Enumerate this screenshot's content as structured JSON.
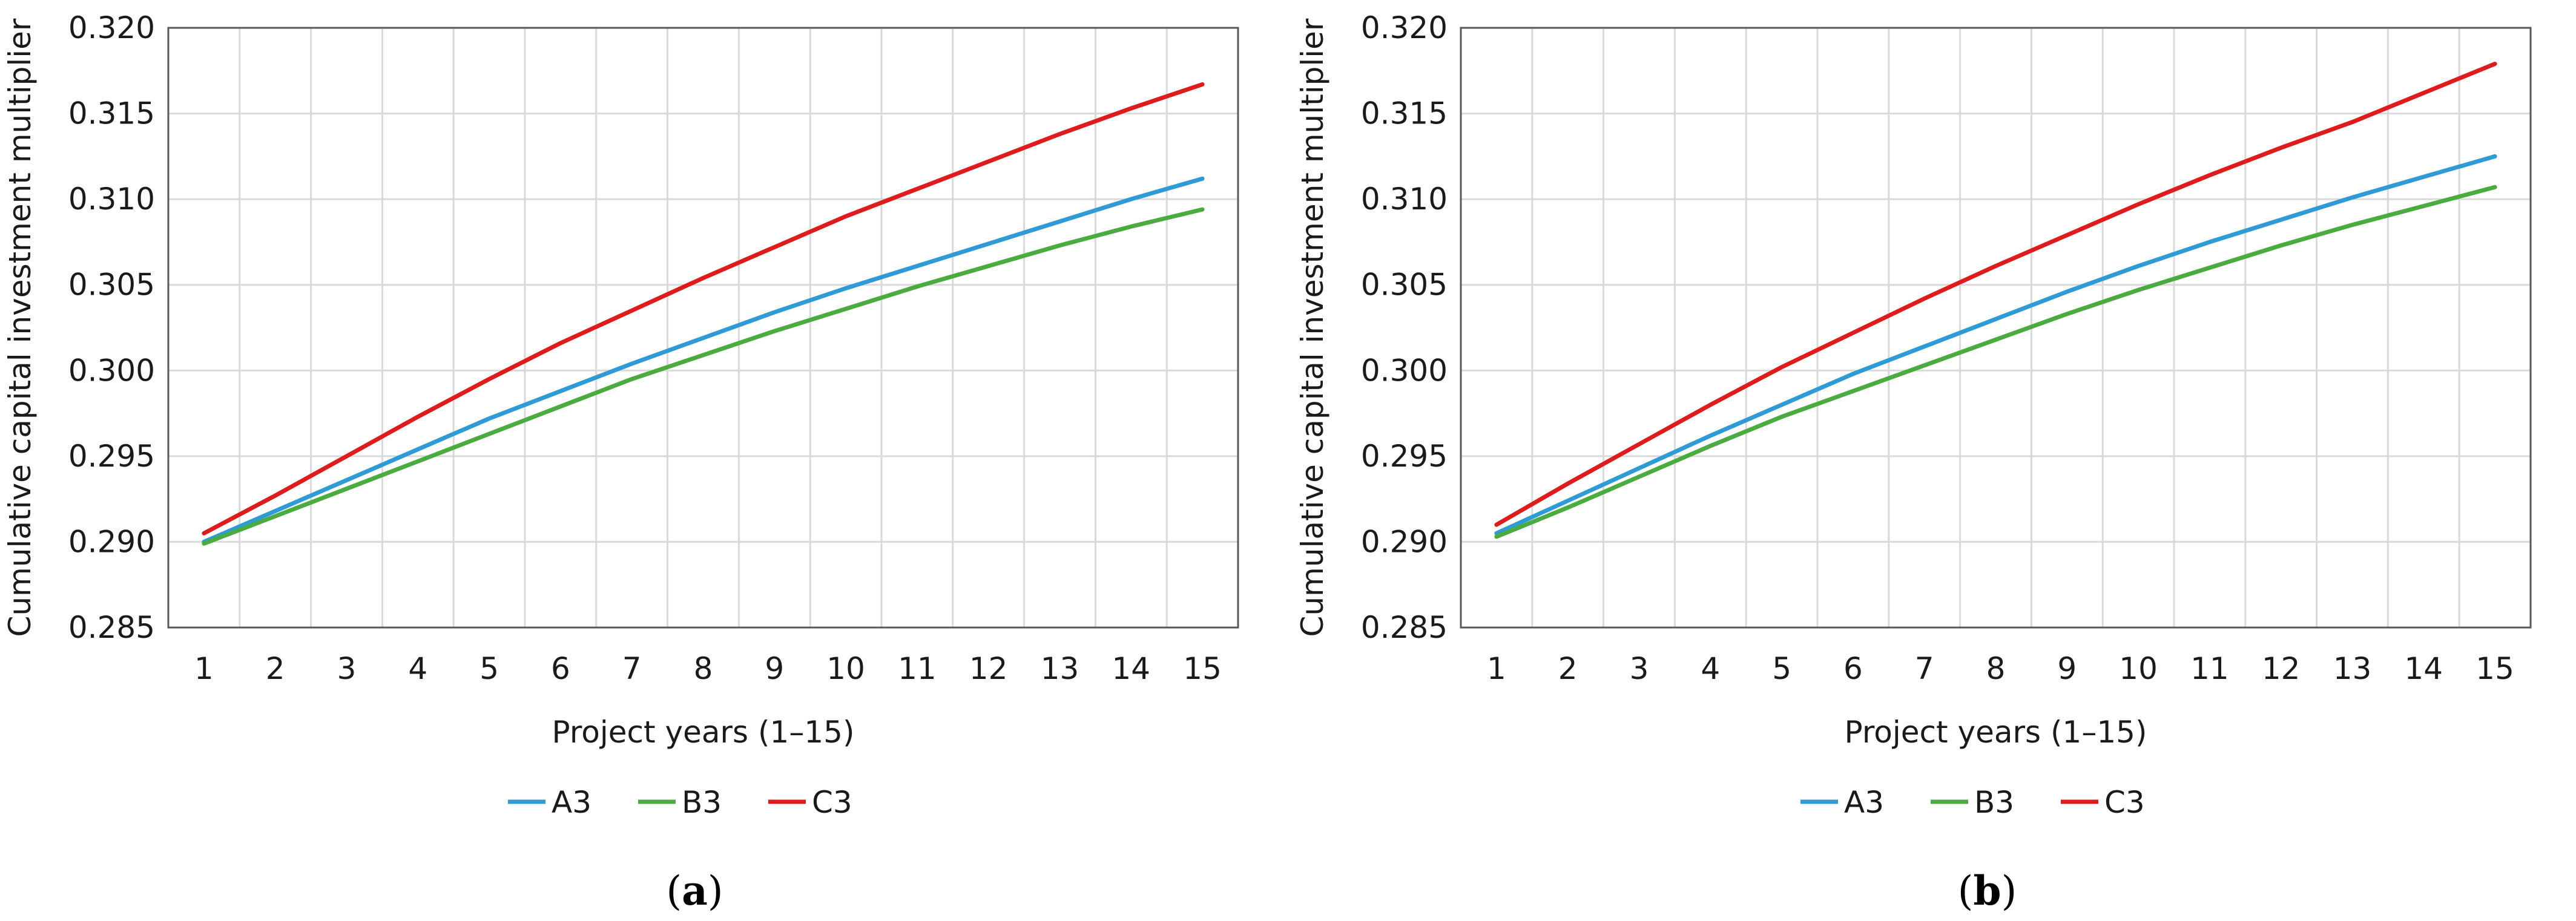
{
  "chart_data": [
    {
      "type": "line",
      "caption": "a",
      "xlabel": "Project years (1–15)",
      "ylabel": "Cumulative capital investment multiplier",
      "ylim": [
        0.285,
        0.32
      ],
      "yticks": [
        "0.285",
        "0.290",
        "0.295",
        "0.300",
        "0.305",
        "0.310",
        "0.315",
        "0.320"
      ],
      "x": [
        1,
        2,
        3,
        4,
        5,
        6,
        7,
        8,
        9,
        10,
        11,
        12,
        13,
        14,
        15
      ],
      "grid": true,
      "legend_position": "bottom",
      "series": [
        {
          "name": "A3",
          "color": "#2e9bd6",
          "values": [
            0.29,
            0.2918,
            0.2936,
            0.2954,
            0.2972,
            0.2988,
            0.3004,
            0.3019,
            0.3034,
            0.3048,
            0.3061,
            0.3074,
            0.3087,
            0.31,
            0.3112
          ]
        },
        {
          "name": "B3",
          "color": "#4aab3e",
          "values": [
            0.2899,
            0.2915,
            0.2931,
            0.2947,
            0.2963,
            0.2979,
            0.2995,
            0.3009,
            0.3023,
            0.3036,
            0.3049,
            0.3061,
            0.3073,
            0.3084,
            0.3094
          ]
        },
        {
          "name": "C3",
          "color": "#e01b1b",
          "values": [
            0.2905,
            0.2927,
            0.295,
            0.2973,
            0.2995,
            0.3016,
            0.3035,
            0.3054,
            0.3072,
            0.309,
            0.3106,
            0.3122,
            0.3138,
            0.3153,
            0.3167
          ]
        }
      ]
    },
    {
      "type": "line",
      "caption": "b",
      "xlabel": "Project years (1–15)",
      "ylabel": "Cumulative capital investment multiplier",
      "ylim": [
        0.285,
        0.32
      ],
      "yticks": [
        "0.285",
        "0.290",
        "0.295",
        "0.300",
        "0.305",
        "0.310",
        "0.315",
        "0.320"
      ],
      "x": [
        1,
        2,
        3,
        4,
        5,
        6,
        7,
        8,
        9,
        10,
        11,
        12,
        13,
        14,
        15
      ],
      "grid": true,
      "legend_position": "bottom",
      "series": [
        {
          "name": "A3",
          "color": "#2e9bd6",
          "values": [
            0.2905,
            0.2924,
            0.2943,
            0.2962,
            0.298,
            0.2998,
            0.3014,
            0.303,
            0.3046,
            0.3061,
            0.3075,
            0.3088,
            0.3101,
            0.3113,
            0.3125
          ]
        },
        {
          "name": "B3",
          "color": "#4aab3e",
          "values": [
            0.2903,
            0.292,
            0.2938,
            0.2956,
            0.2973,
            0.2988,
            0.3003,
            0.3018,
            0.3033,
            0.3047,
            0.306,
            0.3073,
            0.3085,
            0.3096,
            0.3107
          ]
        },
        {
          "name": "C3",
          "color": "#e01b1b",
          "values": [
            0.291,
            0.2934,
            0.2957,
            0.298,
            0.3002,
            0.3022,
            0.3042,
            0.3061,
            0.3079,
            0.3097,
            0.3114,
            0.313,
            0.3145,
            0.3162,
            0.3179
          ]
        }
      ]
    }
  ]
}
